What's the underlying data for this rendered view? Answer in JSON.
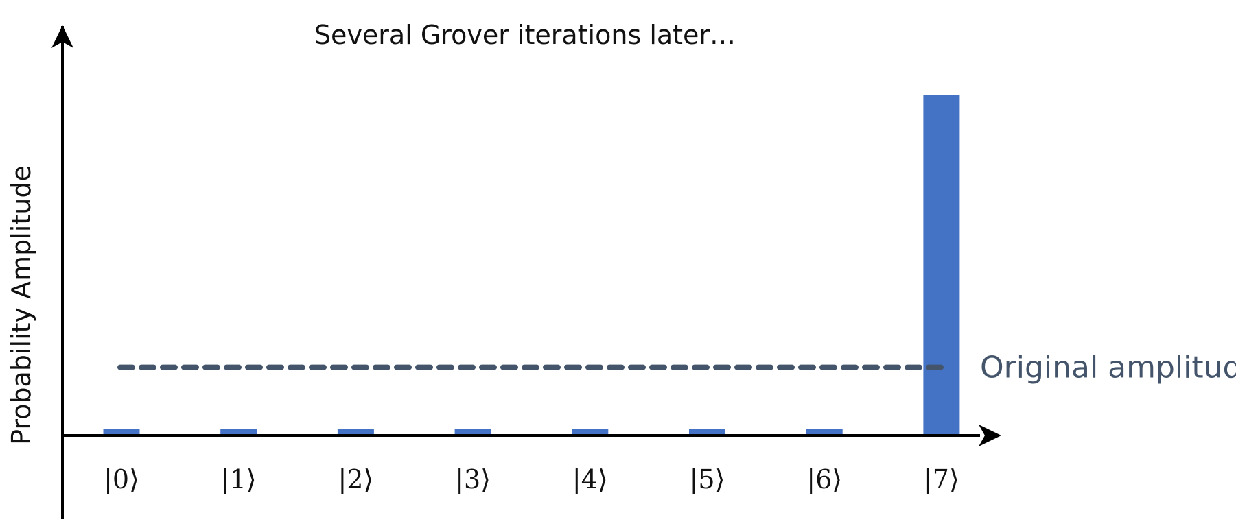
{
  "chart_data": {
    "type": "bar",
    "title": "Several Grover iterations later…",
    "ylabel": "Probability Amplitude",
    "xlabel": "",
    "categories": [
      "|0⟩",
      "|1⟩",
      "|2⟩",
      "|3⟩",
      "|4⟩",
      "|5⟩",
      "|6⟩",
      "|7⟩"
    ],
    "values": [
      0.02,
      0.02,
      0.02,
      0.02,
      0.02,
      0.02,
      0.02,
      1.0
    ],
    "ylim": [
      0,
      1.0
    ],
    "reference_line": {
      "label": "Original amplitude",
      "value": 0.2,
      "style": "dashed"
    },
    "grid": false,
    "colors": {
      "bar": "#4472C4",
      "reference": "#44546A",
      "axis": "#000000"
    }
  }
}
